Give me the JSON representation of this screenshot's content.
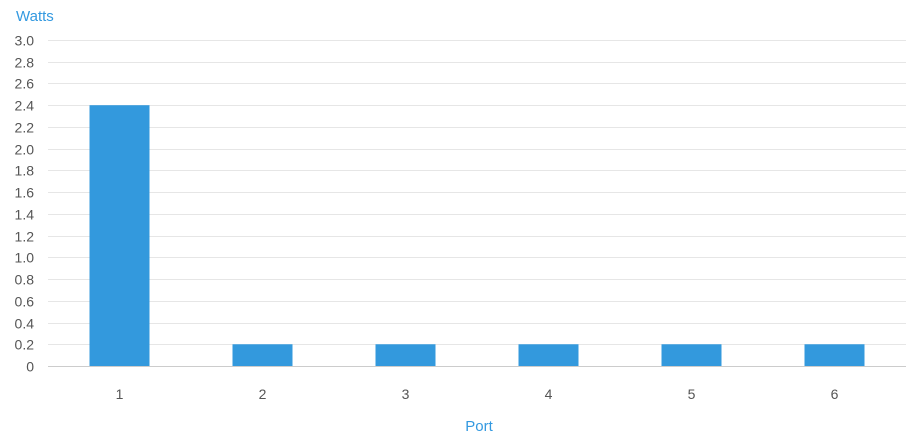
{
  "chart_data": {
    "type": "bar",
    "title": "",
    "xlabel": "Port",
    "ylabel": "Watts",
    "categories": [
      "1",
      "2",
      "3",
      "4",
      "5",
      "6"
    ],
    "values": [
      2.4,
      0.2,
      0.2,
      0.2,
      0.2,
      0.2
    ],
    "ylim": [
      0,
      3.0
    ],
    "y_ticks": [
      "0",
      "0.2",
      "0.4",
      "0.6",
      "0.8",
      "1.0",
      "1.2",
      "1.4",
      "1.6",
      "1.8",
      "2.0",
      "2.2",
      "2.4",
      "2.6",
      "2.8",
      "3.0"
    ],
    "grid": true,
    "legend": "none",
    "bar_color": "#3399dd",
    "label_color": "#3399e0"
  }
}
